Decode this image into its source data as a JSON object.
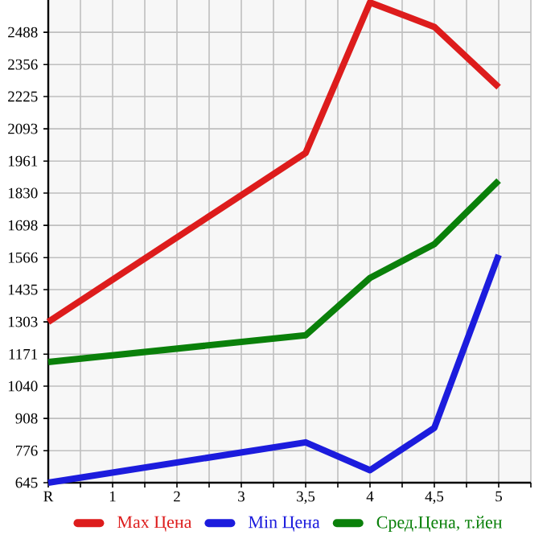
{
  "chart_data": {
    "type": "line",
    "categories": [
      "R",
      "1",
      "2",
      "3",
      "3,5",
      "4",
      "4,5",
      "5"
    ],
    "series": [
      {
        "name": "Max Цена",
        "color": "#dd1c1c",
        "values": [
          1303,
          null,
          null,
          null,
          1994,
          2610,
          2510,
          2263
        ]
      },
      {
        "name": "Min Цена",
        "color": "#1c1cdd",
        "values": [
          645,
          null,
          null,
          null,
          810,
          696,
          869,
          1577
        ]
      },
      {
        "name": "Сред.Цена, т.йен",
        "color": "#0a800a",
        "values": [
          1139,
          null,
          null,
          null,
          1248,
          1483,
          1621,
          1881
        ]
      }
    ],
    "ylim": [
      645,
      2620
    ],
    "yticks": [
      645,
      776,
      908,
      1040,
      1171,
      1303,
      1435,
      1566,
      1698,
      1830,
      1961,
      2093,
      2225,
      2356,
      2488
    ],
    "grid": true,
    "legend": "bottom",
    "marker": "none",
    "line_style": "solid"
  }
}
